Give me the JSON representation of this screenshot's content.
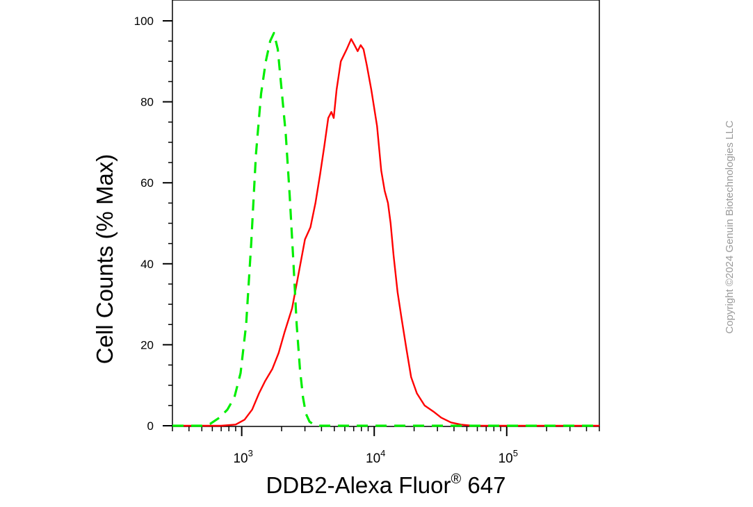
{
  "chart_data": {
    "type": "line",
    "x_scale": "log",
    "xlim": [
      300,
      500000
    ],
    "ylim": [
      0,
      100
    ],
    "grid": false,
    "ylabel": "Cell Counts (% Max)",
    "xlabel": {
      "prefix": "DDB2-Alexa Fluor",
      "superscript": "®",
      "suffix": " 647"
    },
    "y_ticks": [
      0,
      20,
      40,
      60,
      80,
      100
    ],
    "x_major_ticks": [
      {
        "value": 1000,
        "base": "10",
        "exp": "3"
      },
      {
        "value": 10000,
        "base": "10",
        "exp": "4"
      },
      {
        "value": 100000,
        "base": "10",
        "exp": "5"
      }
    ],
    "series": [
      {
        "color": "#ff0000",
        "style": "solid",
        "points": [
          [
            300,
            0
          ],
          [
            700,
            0
          ],
          [
            900,
            0.3
          ],
          [
            1050,
            1.5
          ],
          [
            1200,
            4
          ],
          [
            1350,
            8
          ],
          [
            1500,
            11
          ],
          [
            1700,
            14
          ],
          [
            1900,
            18
          ],
          [
            2100,
            23
          ],
          [
            2400,
            29
          ],
          [
            2700,
            38
          ],
          [
            3000,
            46
          ],
          [
            3300,
            49
          ],
          [
            3600,
            55
          ],
          [
            3900,
            62
          ],
          [
            4200,
            69
          ],
          [
            4500,
            76
          ],
          [
            4750,
            77.5
          ],
          [
            4950,
            76
          ],
          [
            5200,
            83
          ],
          [
            5600,
            90
          ],
          [
            6200,
            93
          ],
          [
            6700,
            95.5
          ],
          [
            7100,
            94
          ],
          [
            7500,
            92.5
          ],
          [
            7900,
            94
          ],
          [
            8300,
            93
          ],
          [
            8800,
            89
          ],
          [
            9500,
            83
          ],
          [
            10500,
            74
          ],
          [
            11300,
            63
          ],
          [
            12000,
            58
          ],
          [
            12700,
            55
          ],
          [
            13300,
            50
          ],
          [
            14000,
            42
          ],
          [
            15000,
            33
          ],
          [
            16000,
            27
          ],
          [
            17500,
            19
          ],
          [
            19000,
            12
          ],
          [
            21000,
            8
          ],
          [
            24000,
            5
          ],
          [
            28000,
            3.5
          ],
          [
            32000,
            2
          ],
          [
            38000,
            0.8
          ],
          [
            45000,
            0.3
          ],
          [
            55000,
            0
          ],
          [
            500000,
            0
          ]
        ]
      },
      {
        "color": "#00ee00",
        "style": "dashed",
        "points": [
          [
            300,
            0
          ],
          [
            500,
            0
          ],
          [
            580,
            0.5
          ],
          [
            680,
            2
          ],
          [
            780,
            4
          ],
          [
            880,
            7
          ],
          [
            980,
            13
          ],
          [
            1080,
            25
          ],
          [
            1180,
            45
          ],
          [
            1280,
            67
          ],
          [
            1400,
            82
          ],
          [
            1520,
            90
          ],
          [
            1640,
            95
          ],
          [
            1750,
            97
          ],
          [
            1870,
            93
          ],
          [
            2000,
            83
          ],
          [
            2150,
            72
          ],
          [
            2300,
            57
          ],
          [
            2450,
            41
          ],
          [
            2600,
            25
          ],
          [
            2750,
            14
          ],
          [
            2900,
            7
          ],
          [
            3050,
            3
          ],
          [
            3250,
            1
          ],
          [
            3500,
            0.3
          ],
          [
            3900,
            0
          ],
          [
            500000,
            0
          ]
        ]
      }
    ]
  },
  "watermark": "Copyright ©2024 Genuin Biotechnologies LLC"
}
